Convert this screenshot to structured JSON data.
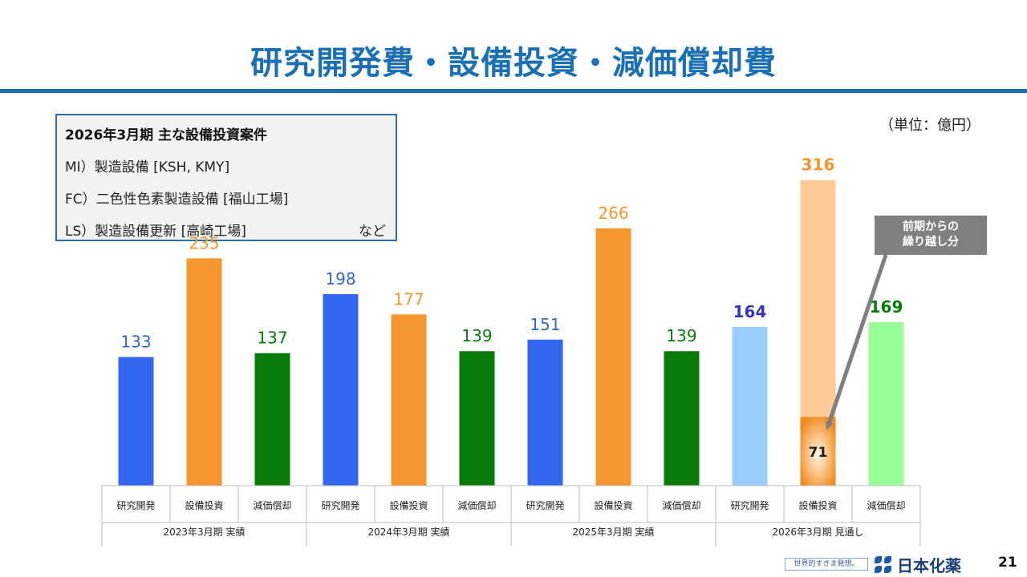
{
  "header": {
    "title": "研究開発費・設備投資・減価償却費"
  },
  "note_box": {
    "heading": "2026年3月期 主な設備投資案件",
    "lines": [
      "MI）製造設備 [KSH, KMY]",
      "FC）二色性色素製造設備 [福山工場]",
      "LS）製造設備更新 [高崎工場]"
    ],
    "etc": "など"
  },
  "unit": "（単位：億円）",
  "callout": {
    "line1": "前期からの",
    "line2": "繰り越し分"
  },
  "footer": {
    "tagline": "世界的すきま発想。",
    "company": "日本化薬",
    "page": "21"
  },
  "colors": {
    "rd": "#3366ee",
    "capex": "#f5962e",
    "dep": "#0a7a0a",
    "rd_forecast": "#99ccff",
    "capex_forecast": "#ffcc99",
    "dep_forecast": "#99ff99",
    "carryover": "#f08a1e",
    "label_rd": "#3366cc",
    "label_rd_forecast": "#3333bb"
  },
  "chart_data": {
    "type": "bar",
    "title": "研究開発費・設備投資・減価償却費",
    "ylabel": "億円",
    "ylim": [
      0,
      340
    ],
    "groups": [
      {
        "label": "2023年3月期 実績",
        "forecast": false,
        "bars": [
          {
            "category": "研究開発",
            "value": 133
          },
          {
            "category": "設備投資",
            "value": 235
          },
          {
            "category": "減価償却",
            "value": 137
          }
        ]
      },
      {
        "label": "2024年3月期 実績",
        "forecast": false,
        "bars": [
          {
            "category": "研究開発",
            "value": 198
          },
          {
            "category": "設備投資",
            "value": 177
          },
          {
            "category": "減価償却",
            "value": 139
          }
        ]
      },
      {
        "label": "2025年3月期 実績",
        "forecast": false,
        "bars": [
          {
            "category": "研究開発",
            "value": 151
          },
          {
            "category": "設備投資",
            "value": 266
          },
          {
            "category": "減価償却",
            "value": 139
          }
        ]
      },
      {
        "label": "2026年3月期 見通し",
        "forecast": true,
        "bars": [
          {
            "category": "研究開発",
            "value": 164
          },
          {
            "category": "設備投資",
            "value": 316,
            "carryover": 71
          },
          {
            "category": "減価償却",
            "value": 169
          }
        ]
      }
    ]
  }
}
